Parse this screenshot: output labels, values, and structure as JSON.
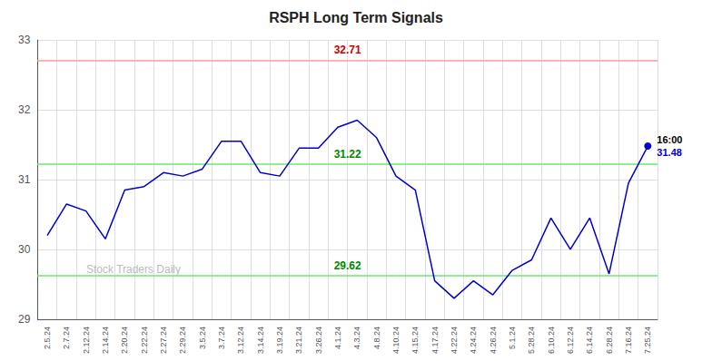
{
  "chart_data": {
    "type": "line",
    "title": "RSPH Long Term Signals",
    "categories": [
      "2.5.24",
      "2.7.24",
      "2.12.24",
      "2.14.24",
      "2.20.24",
      "2.22.24",
      "2.27.24",
      "2.29.24",
      "3.5.24",
      "3.7.24",
      "3.12.24",
      "3.14.24",
      "3.19.24",
      "3.21.24",
      "3.26.24",
      "4.1.24",
      "4.3.24",
      "4.8.24",
      "4.10.24",
      "4.15.24",
      "4.17.24",
      "4.22.24",
      "4.24.24",
      "4.26.24",
      "5.1.24",
      "5.28.24",
      "6.10.24",
      "6.12.24",
      "6.14.24",
      "6.28.24",
      "7.16.24",
      "7.25.24"
    ],
    "values": [
      30.2,
      30.65,
      30.55,
      30.15,
      30.85,
      30.9,
      31.1,
      31.05,
      31.15,
      31.55,
      31.55,
      31.1,
      31.05,
      31.45,
      31.45,
      31.75,
      31.85,
      31.6,
      31.05,
      30.85,
      29.55,
      29.3,
      29.55,
      29.35,
      29.7,
      29.85,
      30.45,
      30.0,
      30.45,
      29.65,
      30.95,
      31.48
    ],
    "color": "#0000cc",
    "ylim": [
      29,
      33
    ],
    "yticks": [
      29,
      30,
      31,
      32,
      33
    ],
    "grid": true,
    "hlines": [
      {
        "value": 32.71,
        "label": "32.71",
        "color": "#ffb3b3",
        "label_color": "#cc0000"
      },
      {
        "value": 31.22,
        "label": "31.22",
        "color": "#90ee90",
        "label_color": "#008800"
      },
      {
        "value": 29.62,
        "label": "29.62",
        "color": "#90ee90",
        "label_color": "#008800"
      }
    ],
    "last_point": {
      "label": "16:00",
      "value_label": "31.48"
    },
    "watermark": "Stock Traders Daily"
  }
}
